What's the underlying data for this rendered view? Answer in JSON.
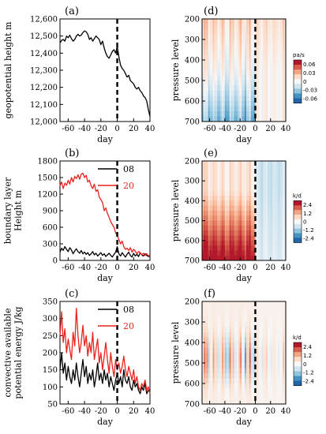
{
  "chart_data": [
    {
      "panel": "(a)",
      "type": "line",
      "xlabel": "day",
      "ylabel": "geopotential height m",
      "xlim": [
        -70,
        40
      ],
      "ylim": [
        12000,
        12600
      ],
      "xticks": [
        -60,
        -40,
        -20,
        0,
        20,
        40
      ],
      "yticks": [
        12000,
        12100,
        12200,
        12300,
        12400,
        12500,
        12600
      ],
      "ytick_labels": [
        "12,000",
        "12,100",
        "12,200",
        "12,300",
        "12,400",
        "12,500",
        "12,600"
      ],
      "colors": [
        "#000000"
      ],
      "vline_x": 0,
      "series": [
        {
          "x": [
            -70,
            -68,
            -66,
            -64,
            -62,
            -60,
            -58,
            -56,
            -54,
            -52,
            -50,
            -48,
            -46,
            -44,
            -42,
            -40,
            -38,
            -36,
            -34,
            -32,
            -30,
            -28,
            -26,
            -24,
            -22,
            -20,
            -18,
            -16,
            -14,
            -12,
            -10,
            -8,
            -6,
            -4,
            -2,
            0,
            2,
            4,
            6,
            8,
            10,
            12,
            14,
            16,
            18,
            20,
            22,
            24,
            26,
            28,
            30,
            32,
            34,
            36,
            38,
            40
          ],
          "values": [
            12460,
            12475,
            12480,
            12470,
            12500,
            12490,
            12505,
            12485,
            12470,
            12480,
            12500,
            12510,
            12500,
            12505,
            12520,
            12530,
            12525,
            12510,
            12480,
            12490,
            12470,
            12485,
            12500,
            12490,
            12480,
            12450,
            12470,
            12430,
            12400,
            12380,
            12370,
            12390,
            12410,
            12420,
            12400,
            12440,
            12380,
            12330,
            12310,
            12300,
            12280,
            12260,
            12270,
            12240,
            12230,
            12220,
            12200,
            12190,
            12200,
            12180,
            12170,
            12150,
            12140,
            12120,
            12070,
            12030
          ]
        }
      ]
    },
    {
      "panel": "(b)",
      "type": "line",
      "xlabel": "day",
      "ylabel": "boundary layer Height m",
      "xlim": [
        -70,
        40
      ],
      "ylim": [
        0,
        1800
      ],
      "xticks": [
        -60,
        -40,
        -20,
        0,
        20,
        40
      ],
      "yticks": [
        0,
        300,
        600,
        900,
        1200,
        1500,
        1800
      ],
      "ytick_labels": [
        "0",
        "300",
        "600",
        "900",
        "1200",
        "1500",
        "1800"
      ],
      "vline_x": 0,
      "series": [
        {
          "name": "08",
          "color": "#000000",
          "x": [
            -70,
            -68,
            -66,
            -64,
            -62,
            -60,
            -58,
            -56,
            -54,
            -52,
            -50,
            -48,
            -46,
            -44,
            -42,
            -40,
            -38,
            -36,
            -34,
            -32,
            -30,
            -28,
            -26,
            -24,
            -22,
            -20,
            -18,
            -16,
            -14,
            -12,
            -10,
            -8,
            -6,
            -4,
            -2,
            0,
            2,
            4,
            6,
            8,
            10,
            12,
            14,
            16,
            18,
            20,
            22,
            24,
            26,
            28,
            30,
            32,
            34,
            36,
            38,
            40
          ],
          "values": [
            150,
            220,
            180,
            250,
            200,
            160,
            230,
            190,
            120,
            170,
            210,
            160,
            130,
            180,
            120,
            150,
            110,
            140,
            90,
            120,
            160,
            100,
            130,
            80,
            110,
            140,
            90,
            120,
            70,
            100,
            130,
            90,
            60,
            110,
            150,
            250,
            120,
            80,
            140,
            100,
            60,
            110,
            150,
            90,
            60,
            130,
            80,
            110,
            70,
            140,
            100,
            80,
            120,
            90,
            70,
            80
          ]
        },
        {
          "name": "20",
          "color": "#e8221c",
          "x": [
            -70,
            -68,
            -66,
            -64,
            -62,
            -60,
            -58,
            -56,
            -54,
            -52,
            -50,
            -48,
            -46,
            -44,
            -42,
            -40,
            -38,
            -36,
            -34,
            -32,
            -30,
            -28,
            -26,
            -24,
            -22,
            -20,
            -18,
            -16,
            -14,
            -12,
            -10,
            -8,
            -6,
            -4,
            -2,
            0,
            2,
            4,
            6,
            8,
            10,
            12,
            14,
            16,
            18,
            20,
            22,
            24,
            26,
            28,
            30,
            32,
            34,
            36,
            38,
            40
          ],
          "values": [
            1350,
            1420,
            1300,
            1400,
            1360,
            1450,
            1380,
            1500,
            1420,
            1520,
            1480,
            1550,
            1470,
            1560,
            1580,
            1500,
            1540,
            1420,
            1450,
            1350,
            1300,
            1380,
            1250,
            1280,
            1150,
            1100,
            1050,
            900,
            950,
            850,
            780,
            700,
            650,
            600,
            500,
            450,
            380,
            300,
            350,
            250,
            200,
            220,
            180,
            230,
            150,
            200,
            170,
            120,
            160,
            140,
            100,
            130,
            90,
            120,
            80,
            100
          ]
        }
      ]
    },
    {
      "panel": "(c)",
      "type": "line",
      "xlabel": "day",
      "ylabel": "convective available potential energy J/kg",
      "xlim": [
        -70,
        40
      ],
      "ylim": [
        50,
        350
      ],
      "xticks": [
        -60,
        -40,
        -20,
        0,
        20,
        40
      ],
      "yticks": [
        50,
        100,
        150,
        200,
        250,
        300,
        350
      ],
      "ytick_labels": [
        "50",
        "100",
        "150",
        "200",
        "250",
        "300",
        "350"
      ],
      "vline_x": 0,
      "series": [
        {
          "name": "08",
          "color": "#000000",
          "x": [
            -70,
            -68,
            -66,
            -64,
            -62,
            -60,
            -58,
            -56,
            -54,
            -52,
            -50,
            -48,
            -46,
            -44,
            -42,
            -40,
            -38,
            -36,
            -34,
            -32,
            -30,
            -28,
            -26,
            -24,
            -22,
            -20,
            -18,
            -16,
            -14,
            -12,
            -10,
            -8,
            -6,
            -4,
            -2,
            0,
            2,
            4,
            6,
            8,
            10,
            12,
            14,
            16,
            18,
            20,
            22,
            24,
            26,
            28,
            30,
            32,
            34,
            36,
            38,
            40
          ],
          "values": [
            150,
            200,
            140,
            170,
            120,
            160,
            130,
            110,
            150,
            120,
            170,
            130,
            100,
            140,
            180,
            130,
            160,
            110,
            140,
            120,
            150,
            100,
            130,
            170,
            120,
            140,
            110,
            150,
            120,
            140,
            100,
            130,
            110,
            90,
            120,
            140,
            110,
            130,
            100,
            150,
            120,
            110,
            130,
            100,
            90,
            120,
            100,
            110,
            90,
            80,
            100,
            90,
            110,
            80,
            90,
            85
          ]
        },
        {
          "name": "20",
          "color": "#e8221c",
          "x": [
            -70,
            -68,
            -66,
            -64,
            -62,
            -60,
            -58,
            -56,
            -54,
            -52,
            -50,
            -48,
            -46,
            -44,
            -42,
            -40,
            -38,
            -36,
            -34,
            -32,
            -30,
            -28,
            -26,
            -24,
            -22,
            -20,
            -18,
            -16,
            -14,
            -12,
            -10,
            -8,
            -6,
            -4,
            -2,
            0,
            2,
            4,
            6,
            8,
            10,
            12,
            14,
            16,
            18,
            20,
            22,
            24,
            26,
            28,
            30,
            32,
            34,
            36,
            38,
            40
          ],
          "values": [
            250,
            320,
            230,
            270,
            200,
            240,
            210,
            180,
            260,
            220,
            330,
            250,
            200,
            230,
            280,
            220,
            250,
            190,
            230,
            200,
            260,
            180,
            210,
            240,
            170,
            200,
            150,
            190,
            230,
            180,
            140,
            200,
            160,
            130,
            180,
            150,
            170,
            140,
            160,
            190,
            150,
            130,
            160,
            140,
            120,
            150,
            110,
            130,
            100,
            90,
            110,
            100,
            120,
            90,
            100,
            80
          ]
        }
      ]
    },
    {
      "panel": "(d)",
      "type": "heatmap",
      "xlabel": "day",
      "ylabel": "pressure level",
      "xlim": [
        -70,
        40
      ],
      "ylim": [
        700,
        200
      ],
      "xticks": [
        -60,
        -40,
        -20,
        0,
        20,
        40
      ],
      "yticks": [
        200,
        300,
        400,
        500,
        600,
        700
      ],
      "vline_x": 0,
      "colorbar": {
        "unit": "pa/s",
        "tick_labels": [
          "0.06",
          "0.03",
          "0",
          "-0.03",
          "-0.06"
        ],
        "colors": [
          "#b2182b",
          "#d6604d",
          "#f4a582",
          "#fddbc7",
          "#f7f7f7",
          "#d1e5f0",
          "#92c5de",
          "#4393c3",
          "#2166ac"
        ]
      }
    },
    {
      "panel": "(e)",
      "type": "heatmap",
      "xlabel": "day",
      "ylabel": "pressure level",
      "xlim": [
        -70,
        40
      ],
      "ylim": [
        700,
        200
      ],
      "xticks": [
        -60,
        -40,
        -20,
        0,
        20,
        40
      ],
      "yticks": [
        200,
        300,
        400,
        500,
        600,
        700
      ],
      "vline_x": 0,
      "colorbar": {
        "unit": "k/d",
        "tick_labels": [
          "2.4",
          "1.2",
          "0",
          "-1.2",
          "-2.4"
        ],
        "colors": [
          "#b2182b",
          "#d6604d",
          "#f4a582",
          "#fddbc7",
          "#f7f7f7",
          "#d1e5f0",
          "#92c5de",
          "#4393c3",
          "#2166ac"
        ]
      }
    },
    {
      "panel": "(f)",
      "type": "heatmap",
      "xlabel": "day",
      "ylabel": "pressure level",
      "xlim": [
        -70,
        40
      ],
      "ylim": [
        700,
        200
      ],
      "xticks": [
        -60,
        -40,
        -20,
        0,
        20,
        40
      ],
      "yticks": [
        200,
        300,
        400,
        500,
        600,
        700
      ],
      "vline_x": 0,
      "colorbar": {
        "unit": "k/d",
        "tick_labels": [
          "2.4",
          "1.2",
          "0",
          "-1.2",
          "-2.4"
        ],
        "colors": [
          "#b2182b",
          "#d6604d",
          "#f4a582",
          "#fddbc7",
          "#f7f7f7",
          "#d1e5f0",
          "#92c5de",
          "#4393c3",
          "#2166ac"
        ]
      }
    }
  ]
}
